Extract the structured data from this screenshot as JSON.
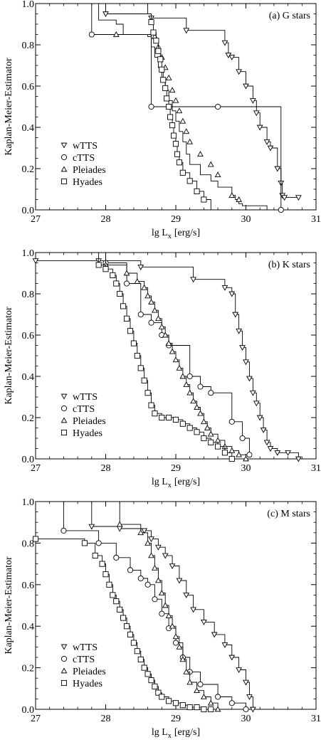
{
  "chart_data": [
    {
      "type": "line",
      "title": "(a) G stars",
      "xlabel": "lg L",
      "xlabel_sub": "x",
      "xlabel_unit": "[erg/s]",
      "ylabel": "Kaplan-Meier-Estimator",
      "xlim": [
        27,
        31
      ],
      "ylim": [
        0,
        1
      ],
      "xticks": [
        "27",
        "28",
        "29",
        "30",
        "31"
      ],
      "yticks": [
        "0.0",
        "0.2",
        "0.4",
        "0.6",
        "0.8",
        "1.0"
      ],
      "legend_position": "bottom-left",
      "series": [
        {
          "name": "wTTS",
          "marker": "tri-down",
          "x": [
            28.0,
            28.65,
            29.15,
            29.7,
            29.75,
            29.8,
            29.9,
            30.0,
            30.1,
            30.15,
            30.2,
            30.3,
            30.35,
            30.45,
            30.5,
            30.52,
            30.55,
            30.75
          ],
          "y": [
            0.95,
            0.93,
            0.87,
            0.81,
            0.75,
            0.74,
            0.67,
            0.6,
            0.53,
            0.47,
            0.4,
            0.33,
            0.3,
            0.2,
            0.13,
            0.07,
            0.06,
            0.06
          ]
        },
        {
          "name": "cTTS",
          "marker": "circle",
          "x": [
            27.8,
            28.65,
            29.6,
            30.5
          ],
          "y": [
            0.85,
            0.5,
            0.5,
            0.0
          ]
        },
        {
          "name": "Pleiades",
          "marker": "triangle",
          "x": [
            27.9,
            28.15,
            28.25,
            28.6,
            28.65,
            28.7,
            28.75,
            28.8,
            28.85,
            28.9,
            28.95,
            29.0,
            29.05,
            29.1,
            29.15,
            29.2,
            29.35,
            29.5,
            29.6,
            29.8,
            29.85,
            29.9,
            29.95,
            30.05,
            30.3
          ],
          "y": [
            0.92,
            0.9,
            0.85,
            0.84,
            0.79,
            0.74,
            0.69,
            0.64,
            0.58,
            0.53,
            0.48,
            0.43,
            0.38,
            0.33,
            0.27,
            0.22,
            0.17,
            0.14,
            0.11,
            0.07,
            0.05,
            0.03,
            0.02,
            0.02,
            0.0
          ],
          "markers_x": [
            28.15,
            28.7,
            28.75,
            28.8,
            28.85,
            28.9,
            28.95,
            29.0,
            29.05,
            29.1,
            29.15,
            29.2,
            29.35,
            29.5,
            29.6,
            29.8,
            29.9
          ],
          "markers_y": [
            0.85,
            0.84,
            0.79,
            0.74,
            0.69,
            0.64,
            0.58,
            0.53,
            0.48,
            0.43,
            0.38,
            0.33,
            0.27,
            0.22,
            0.17,
            0.07,
            0.05
          ]
        },
        {
          "name": "Hyades",
          "marker": "square",
          "x": [
            28.6,
            28.65,
            28.68,
            28.72,
            28.75,
            28.78,
            28.8,
            28.82,
            28.85,
            28.87,
            28.9,
            28.92,
            28.95,
            28.97,
            29.0,
            29.02,
            29.05,
            29.1,
            29.2,
            29.3,
            29.4,
            29.5
          ],
          "y": [
            0.95,
            0.91,
            0.86,
            0.82,
            0.77,
            0.73,
            0.68,
            0.63,
            0.59,
            0.54,
            0.5,
            0.45,
            0.41,
            0.36,
            0.32,
            0.27,
            0.23,
            0.18,
            0.14,
            0.09,
            0.05,
            0.0
          ],
          "markers_x": [
            28.65,
            28.68,
            28.72,
            28.75,
            28.78,
            28.8,
            28.82,
            28.85,
            28.87,
            28.9,
            28.92,
            28.95,
            28.97,
            29.0,
            29.02,
            29.05,
            29.1,
            29.2,
            29.3,
            29.4
          ],
          "markers_y": [
            0.91,
            0.86,
            0.82,
            0.77,
            0.73,
            0.68,
            0.63,
            0.59,
            0.54,
            0.5,
            0.45,
            0.41,
            0.36,
            0.32,
            0.27,
            0.23,
            0.18,
            0.14,
            0.09,
            0.05
          ]
        }
      ]
    },
    {
      "type": "line",
      "title": "(b) K stars",
      "xlabel": "lg L",
      "xlabel_sub": "x",
      "xlabel_unit": "[erg/s]",
      "ylabel": "Kaplan-Meier-Estimator",
      "xlim": [
        27,
        31
      ],
      "ylim": [
        0,
        1
      ],
      "xticks": [
        "27",
        "28",
        "29",
        "30",
        "31"
      ],
      "yticks": [
        "0.0",
        "0.2",
        "0.4",
        "0.6",
        "0.8",
        "1.0"
      ],
      "legend_position": "bottom-left",
      "series": [
        {
          "name": "wTTS",
          "marker": "tri-down",
          "x": [
            27.0,
            27.9,
            28.5,
            29.25,
            29.7,
            29.8,
            29.85,
            29.9,
            29.95,
            30.0,
            30.05,
            30.1,
            30.15,
            30.2,
            30.25,
            30.3,
            30.35,
            30.45,
            30.6,
            30.75
          ],
          "y": [
            0.96,
            0.96,
            0.93,
            0.87,
            0.83,
            0.8,
            0.7,
            0.62,
            0.54,
            0.47,
            0.39,
            0.32,
            0.27,
            0.2,
            0.14,
            0.08,
            0.05,
            0.03,
            0.03,
            0.0
          ]
        },
        {
          "name": "cTTS",
          "marker": "circle",
          "x": [
            28.0,
            28.3,
            28.5,
            28.65,
            28.8,
            28.9,
            29.2,
            29.35,
            29.5,
            29.8,
            29.95,
            30.05
          ],
          "y": [
            0.95,
            0.85,
            0.7,
            0.66,
            0.6,
            0.55,
            0.4,
            0.35,
            0.32,
            0.18,
            0.1,
            0.02
          ]
        },
        {
          "name": "Pleiades",
          "marker": "triangle",
          "x": [
            28.0,
            28.3,
            28.45,
            28.55,
            28.6,
            28.65,
            28.7,
            28.75,
            28.8,
            28.85,
            28.9,
            28.95,
            29.0,
            29.05,
            29.1,
            29.15,
            29.2,
            29.25,
            29.3,
            29.35,
            29.4,
            29.45,
            29.5,
            29.6,
            29.7,
            29.8,
            29.9,
            30.0
          ],
          "y": [
            0.94,
            0.9,
            0.86,
            0.83,
            0.79,
            0.76,
            0.72,
            0.68,
            0.64,
            0.6,
            0.56,
            0.52,
            0.48,
            0.44,
            0.4,
            0.36,
            0.32,
            0.28,
            0.25,
            0.22,
            0.18,
            0.15,
            0.12,
            0.09,
            0.06,
            0.04,
            0.02,
            0.0
          ]
        },
        {
          "name": "Hyades",
          "marker": "square",
          "x": [
            27.9,
            28.0,
            28.1,
            28.15,
            28.2,
            28.25,
            28.3,
            28.35,
            28.4,
            28.45,
            28.5,
            28.55,
            28.6,
            28.65,
            28.7,
            28.8,
            28.9,
            29.0,
            29.1,
            29.2,
            29.3,
            29.4,
            29.5,
            29.6,
            29.7,
            29.8
          ],
          "y": [
            0.94,
            0.92,
            0.89,
            0.85,
            0.8,
            0.74,
            0.68,
            0.62,
            0.56,
            0.5,
            0.44,
            0.38,
            0.32,
            0.26,
            0.22,
            0.2,
            0.2,
            0.19,
            0.17,
            0.15,
            0.13,
            0.1,
            0.08,
            0.06,
            0.03,
            0.0
          ]
        }
      ]
    },
    {
      "type": "line",
      "title": "(c) M stars",
      "xlabel": "lg L",
      "xlabel_sub": "x",
      "xlabel_unit": "[erg/s]",
      "ylabel": "Kaplan-Meier-Estimator",
      "xlim": [
        27,
        31
      ],
      "ylim": [
        0,
        1
      ],
      "xticks": [
        "27",
        "28",
        "29",
        "30",
        "31"
      ],
      "yticks": [
        "0.0",
        "0.2",
        "0.4",
        "0.6",
        "0.8",
        "1.0"
      ],
      "legend_position": "bottom-left",
      "series": [
        {
          "name": "wTTS",
          "marker": "tri-down",
          "x": [
            27.8,
            28.2,
            28.55,
            28.65,
            28.75,
            28.85,
            28.95,
            29.05,
            29.15,
            29.25,
            29.4,
            29.55,
            29.7,
            29.8,
            29.9,
            30.0,
            30.05,
            30.1
          ],
          "y": [
            0.88,
            0.87,
            0.86,
            0.82,
            0.78,
            0.74,
            0.69,
            0.62,
            0.55,
            0.48,
            0.42,
            0.36,
            0.31,
            0.25,
            0.19,
            0.13,
            0.06,
            0.0
          ]
        },
        {
          "name": "cTTS",
          "marker": "circle",
          "x": [
            27.4,
            27.9,
            28.15,
            28.35,
            28.5,
            28.6,
            28.7,
            28.8,
            28.9,
            29.0,
            29.1,
            29.2,
            29.35,
            29.6,
            29.8,
            30.0
          ],
          "y": [
            0.86,
            0.8,
            0.73,
            0.67,
            0.63,
            0.6,
            0.53,
            0.46,
            0.39,
            0.32,
            0.25,
            0.18,
            0.12,
            0.06,
            0.03,
            0.0
          ]
        },
        {
          "name": "Pleiades",
          "marker": "triangle",
          "x": [
            28.2,
            28.5,
            28.6,
            28.65,
            28.7,
            28.75,
            28.8,
            28.85,
            28.9,
            28.95,
            29.0,
            29.05,
            29.1,
            29.15,
            29.2,
            29.3,
            29.4,
            29.5,
            29.6
          ],
          "y": [
            0.89,
            0.85,
            0.8,
            0.74,
            0.68,
            0.62,
            0.56,
            0.5,
            0.45,
            0.4,
            0.35,
            0.3,
            0.24,
            0.18,
            0.13,
            0.09,
            0.06,
            0.03,
            0.0
          ]
        },
        {
          "name": "Hyades",
          "marker": "square",
          "x": [
            27.0,
            27.7,
            27.85,
            27.95,
            28.0,
            28.05,
            28.1,
            28.15,
            28.2,
            28.25,
            28.3,
            28.35,
            28.4,
            28.45,
            28.5,
            28.55,
            28.6,
            28.65,
            28.7,
            28.75,
            28.8,
            28.9,
            29.0,
            29.1,
            29.2,
            29.3,
            29.4,
            29.5
          ],
          "y": [
            0.82,
            0.8,
            0.74,
            0.7,
            0.65,
            0.6,
            0.55,
            0.52,
            0.48,
            0.44,
            0.4,
            0.36,
            0.32,
            0.28,
            0.24,
            0.2,
            0.17,
            0.14,
            0.11,
            0.08,
            0.06,
            0.04,
            0.03,
            0.02,
            0.01,
            0.01,
            0.0,
            0.0
          ]
        }
      ]
    }
  ]
}
